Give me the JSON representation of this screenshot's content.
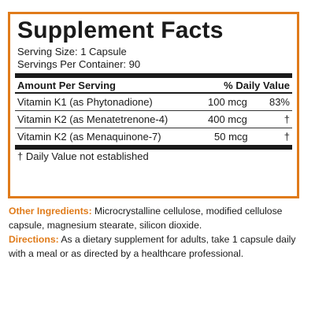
{
  "panel": {
    "title": "Supplement Facts",
    "serving_size": "Serving Size: 1 Capsule",
    "servings_per_container": "Servings Per Container: 90",
    "header_amount": "Amount Per Serving",
    "header_dv": "% Daily Value",
    "rows": [
      {
        "name": "Vitamin K1 (as Phytonadione)",
        "amount": "100 mcg",
        "dv": "83%"
      },
      {
        "name": "Vitamin K2 (as Menatetrenone-4)",
        "amount": "400 mcg",
        "dv": "†"
      },
      {
        "name": "Vitamin K2 (as Menaquinone-7)",
        "amount": "50 mcg",
        "dv": "†"
      }
    ],
    "footnote": "† Daily Value not established"
  },
  "other_ingredients": {
    "label": "Other Ingredients:",
    "text": " Microcrystalline cellulose, modified cellulose capsule, magnesium stearate, silicon dioxide."
  },
  "directions": {
    "label": "Directions:",
    "text": " As a dietary supplement for adults, take 1 capsule daily with a meal or as directed by a healthcare professional."
  },
  "colors": {
    "accent": "#e07b1a",
    "text": "#1a1a1a"
  }
}
